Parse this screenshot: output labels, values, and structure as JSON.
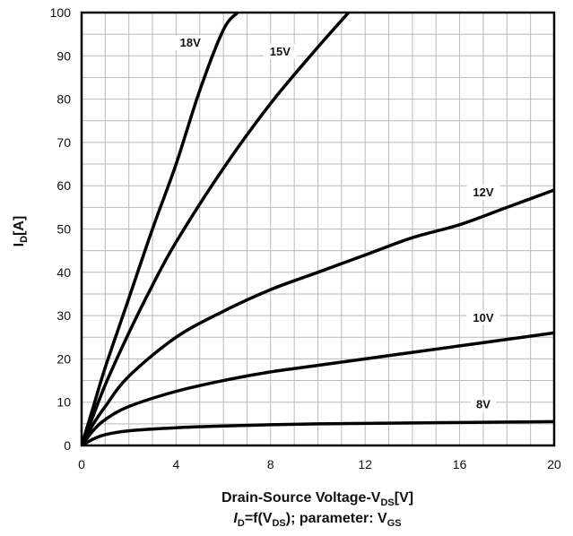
{
  "chart_data": {
    "type": "line",
    "xlabel": {
      "main": "Drain-Source Voltage-V",
      "sub": "DS",
      "unit": "[V]"
    },
    "ylabel": {
      "main": "I",
      "sub": "D",
      "unit": "[A]"
    },
    "caption": {
      "i": "I",
      "i_sub": "D",
      "mid": "=f(V",
      "v_sub": "DS",
      "tail": "); parameter: V",
      "tail_sub": "GS"
    },
    "xlim": [
      0,
      20
    ],
    "ylim": [
      0,
      100
    ],
    "x_ticks": [
      0,
      4,
      8,
      12,
      16,
      20
    ],
    "x_tick_labels": [
      "0",
      "4",
      "8",
      "12",
      "16",
      "20"
    ],
    "y_ticks": [
      0,
      10,
      20,
      30,
      40,
      50,
      60,
      70,
      80,
      90,
      100
    ],
    "y_tick_labels": [
      "0",
      "10",
      "20",
      "30",
      "40",
      "50",
      "60",
      "70",
      "80",
      "90",
      "100"
    ],
    "grid": true,
    "series": [
      {
        "name": "18V",
        "points": [
          [
            0,
            0
          ],
          [
            0.5,
            9
          ],
          [
            1,
            18
          ],
          [
            2,
            34
          ],
          [
            3,
            50
          ],
          [
            4,
            65
          ],
          [
            5,
            82
          ],
          [
            6,
            96
          ],
          [
            6.6,
            100
          ]
        ]
      },
      {
        "name": "15V",
        "points": [
          [
            0,
            0
          ],
          [
            0.5,
            7
          ],
          [
            1,
            14
          ],
          [
            2,
            26
          ],
          [
            3,
            37
          ],
          [
            4,
            47
          ],
          [
            6,
            64
          ],
          [
            8,
            79
          ],
          [
            10,
            92
          ],
          [
            11.3,
            100
          ]
        ]
      },
      {
        "name": "12V",
        "points": [
          [
            0,
            0
          ],
          [
            0.5,
            5
          ],
          [
            1,
            9
          ],
          [
            2,
            16
          ],
          [
            4,
            25
          ],
          [
            6,
            31
          ],
          [
            8,
            36
          ],
          [
            10,
            40
          ],
          [
            12,
            44
          ],
          [
            14,
            48
          ],
          [
            16,
            51
          ],
          [
            18,
            55
          ],
          [
            20,
            59
          ]
        ]
      },
      {
        "name": "10V",
        "points": [
          [
            0,
            0
          ],
          [
            0.5,
            3.5
          ],
          [
            1,
            6
          ],
          [
            2,
            9
          ],
          [
            4,
            12.5
          ],
          [
            6,
            15
          ],
          [
            8,
            17
          ],
          [
            10,
            18.5
          ],
          [
            12,
            20
          ],
          [
            14,
            21.5
          ],
          [
            16,
            23
          ],
          [
            18,
            24.5
          ],
          [
            20,
            26
          ]
        ]
      },
      {
        "name": "8V",
        "points": [
          [
            0,
            0
          ],
          [
            0.5,
            1.5
          ],
          [
            1,
            2.5
          ],
          [
            2,
            3.4
          ],
          [
            4,
            4.1
          ],
          [
            6,
            4.5
          ],
          [
            8,
            4.8
          ],
          [
            10,
            5
          ],
          [
            12,
            5.1
          ],
          [
            14,
            5.2
          ],
          [
            16,
            5.3
          ],
          [
            18,
            5.4
          ],
          [
            20,
            5.5
          ]
        ]
      }
    ],
    "curve_labels": [
      {
        "name": "18V",
        "x": 4.6,
        "y": 92.5
      },
      {
        "name": "15V",
        "x": 8.4,
        "y": 90.5
      },
      {
        "name": "12V",
        "x": 17.0,
        "y": 58.0
      },
      {
        "name": "10V",
        "x": 17.0,
        "y": 29.0
      },
      {
        "name": "8V",
        "x": 17.0,
        "y": 9.0
      }
    ]
  }
}
